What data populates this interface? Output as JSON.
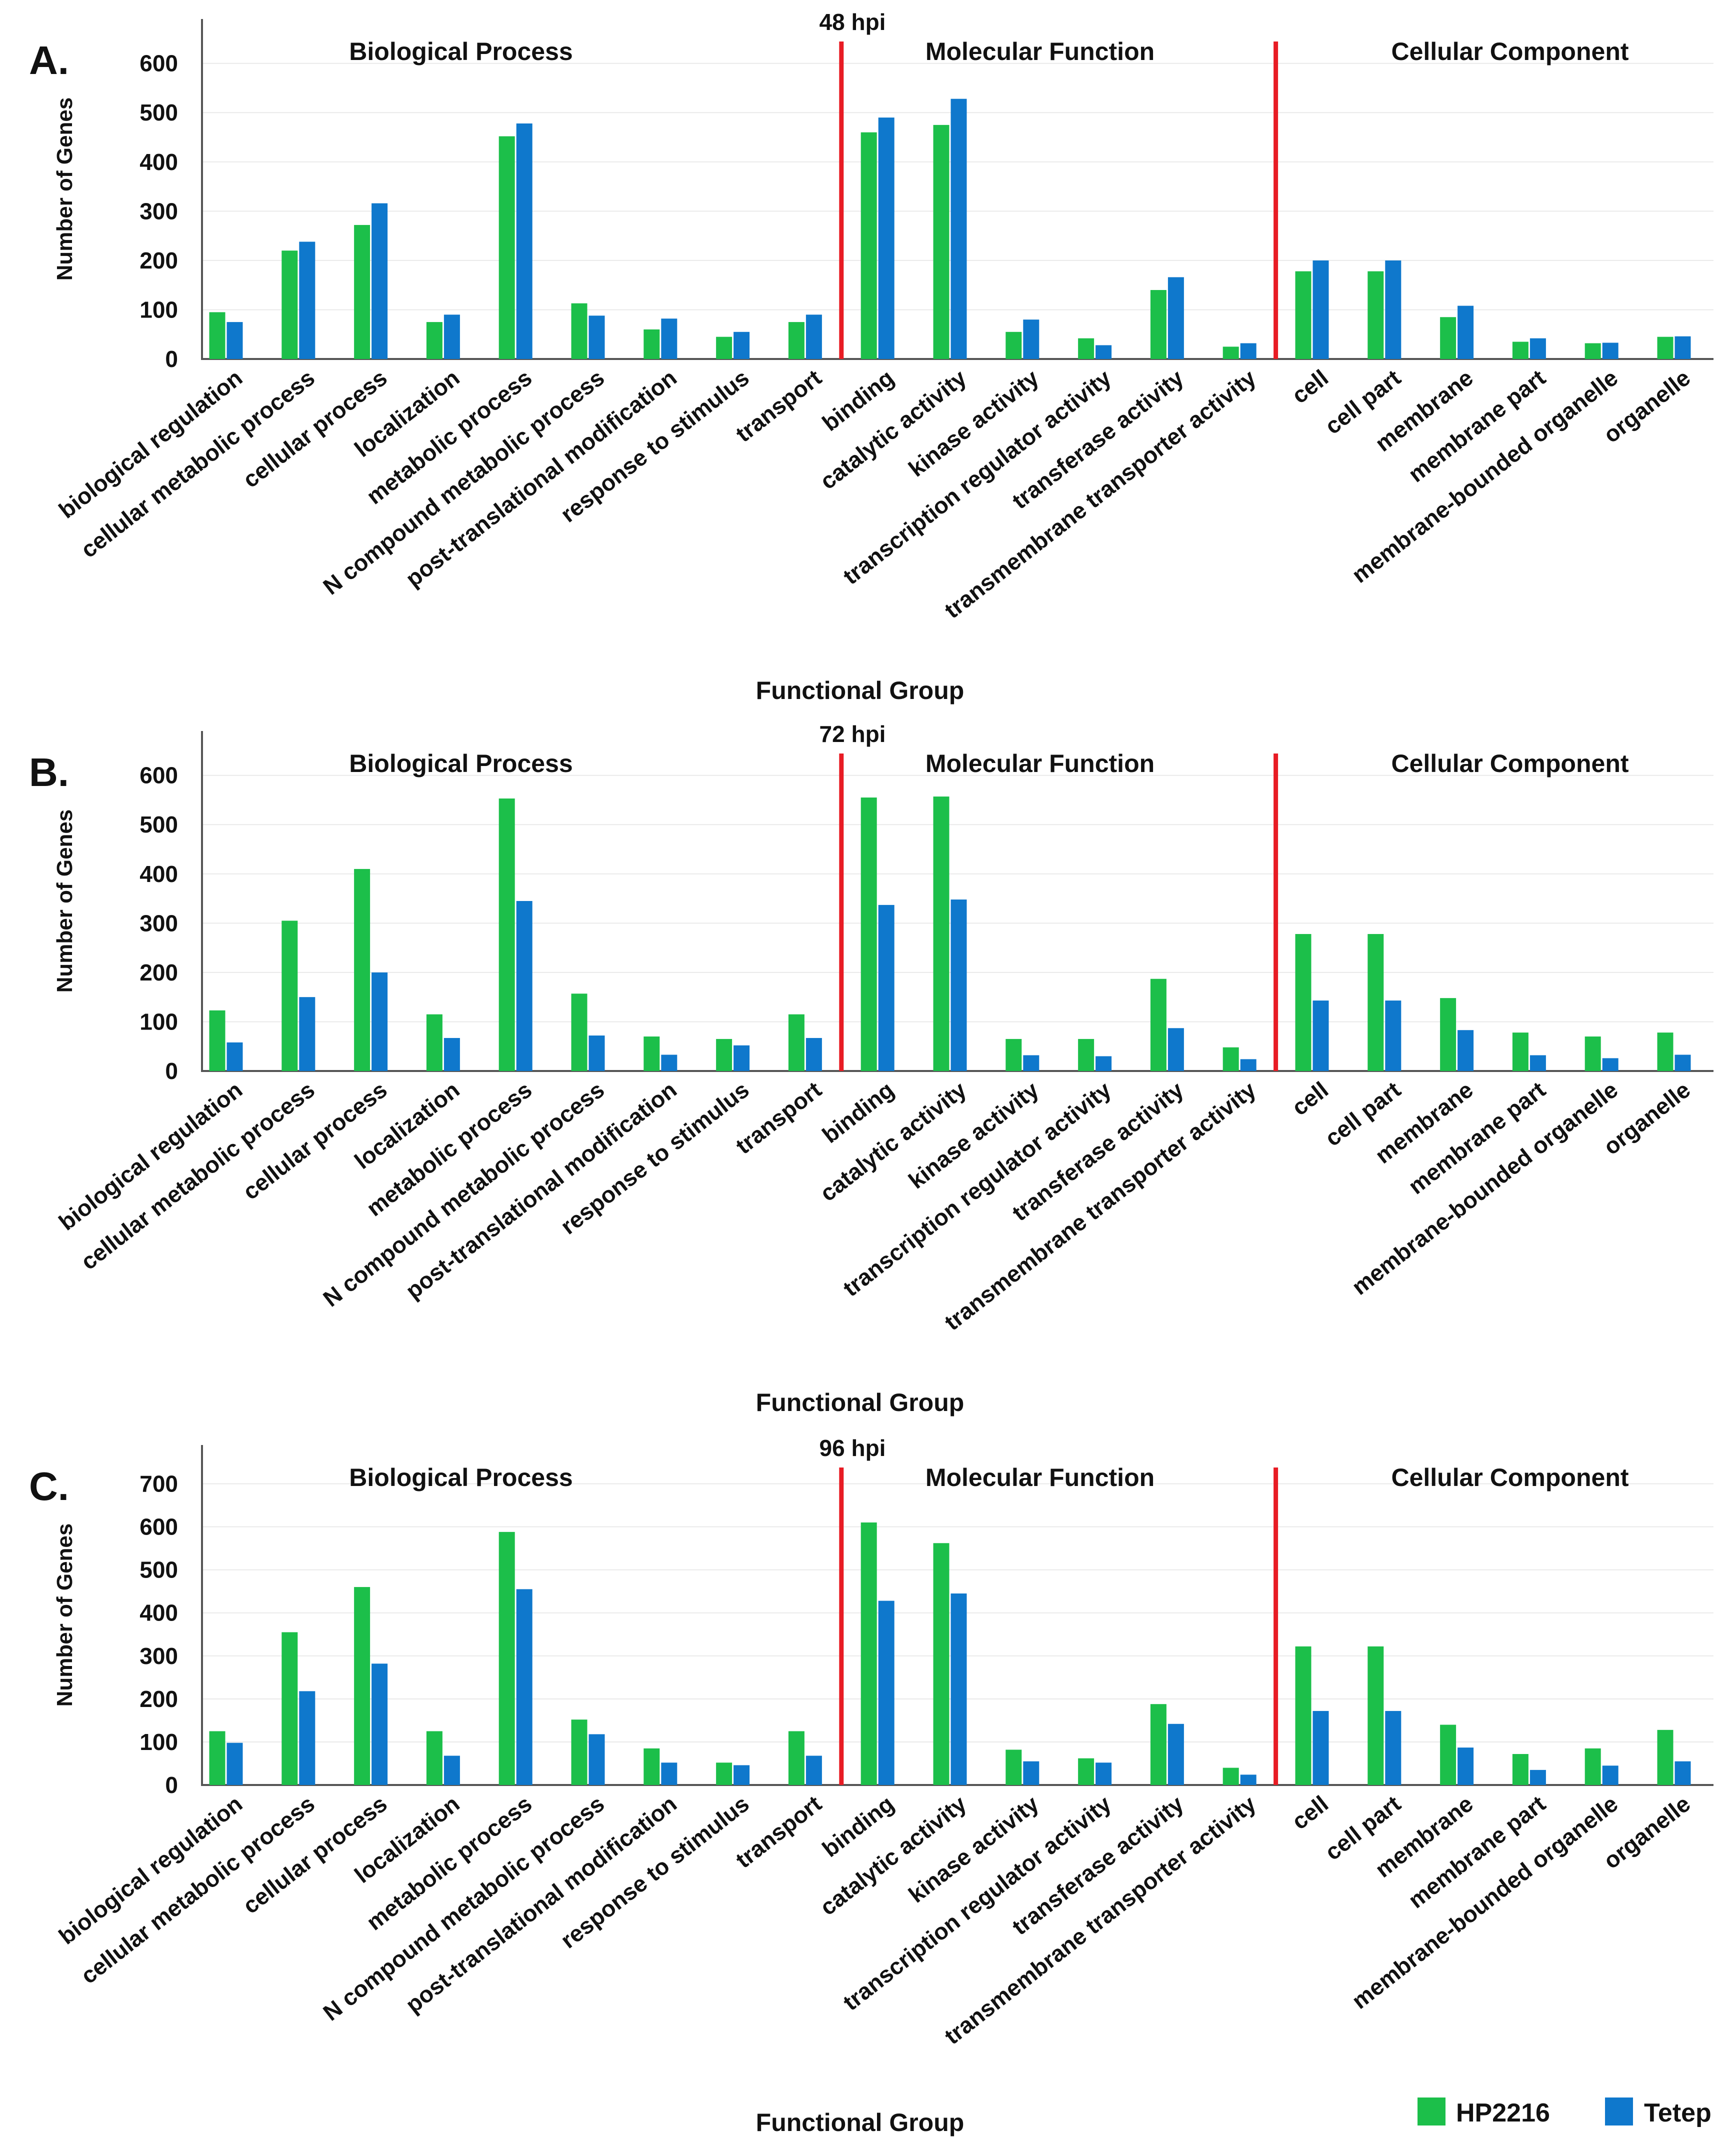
{
  "colors": {
    "series1": "#1cbf4a",
    "series2": "#0f78cc",
    "divider": "#e81c24"
  },
  "legend": {
    "series1_label": "HP2216",
    "series2_label": "Tetep"
  },
  "chart_data": [
    {
      "type": "bar",
      "panel_label": "A.",
      "title": "48 hpi",
      "ylabel": "Number of Genes",
      "xlabel": "Functional Group",
      "ylim": [
        0,
        690
      ],
      "yticks": [
        0,
        100,
        200,
        300,
        400,
        500,
        600
      ],
      "group_titles": [
        "Biological Process",
        "Molecular Function",
        "Cellular Component"
      ],
      "categories": [
        "biological regulation",
        "cellular metabolic process",
        "cellular process",
        "localization",
        "metabolic process",
        "N compound metabolic process",
        "post-translational modification",
        "response to stimulus",
        "transport",
        "binding",
        "catalytic activity",
        "kinase activity",
        "transcription regulator activity",
        "transferase activity",
        "transmembrane transporter activity",
        "cell",
        "cell part",
        "membrane",
        "membrane part",
        "membrane-bounded organelle",
        "organelle"
      ],
      "series": [
        {
          "name": "HP2216",
          "values": [
            95,
            220,
            272,
            75,
            452,
            113,
            60,
            45,
            75,
            460,
            475,
            55,
            42,
            140,
            25,
            178,
            178,
            85,
            35,
            32,
            45
          ]
        },
        {
          "name": "Tetep",
          "values": [
            75,
            238,
            316,
            90,
            478,
            88,
            82,
            55,
            90,
            490,
            528,
            80,
            28,
            166,
            32,
            200,
            200,
            108,
            42,
            33,
            46
          ]
        }
      ]
    },
    {
      "type": "bar",
      "panel_label": "B.",
      "title": "72 hpi",
      "ylabel": "Number of Genes",
      "xlabel": "Functional Group",
      "ylim": [
        0,
        690
      ],
      "yticks": [
        0,
        100,
        200,
        300,
        400,
        500,
        600
      ],
      "group_titles": [
        "Biological Process",
        "Molecular Function",
        "Cellular Component"
      ],
      "categories": [
        "biological regulation",
        "cellular metabolic process",
        "cellular process",
        "localization",
        "metabolic process",
        "N compound metabolic process",
        "post-translational modification",
        "response to stimulus",
        "transport",
        "binding",
        "catalytic activity",
        "kinase activity",
        "transcription regulator activity",
        "transferase activity",
        "transmembrane transporter activity",
        "cell",
        "cell part",
        "membrane",
        "membrane part",
        "membrane-bounded organelle",
        "organelle"
      ],
      "series": [
        {
          "name": "HP2216",
          "values": [
            123,
            305,
            410,
            115,
            553,
            157,
            70,
            65,
            115,
            555,
            557,
            65,
            65,
            187,
            48,
            278,
            278,
            148,
            78,
            70,
            78
          ]
        },
        {
          "name": "Tetep",
          "values": [
            58,
            150,
            200,
            67,
            345,
            72,
            33,
            52,
            67,
            337,
            348,
            32,
            30,
            87,
            24,
            143,
            143,
            83,
            32,
            26,
            33
          ]
        }
      ]
    },
    {
      "type": "bar",
      "panel_label": "C.",
      "title": "96 hpi",
      "ylabel": "Number of Genes",
      "xlabel": "Functional Group",
      "ylim": [
        0,
        790
      ],
      "yticks": [
        0,
        100,
        200,
        300,
        400,
        500,
        600,
        700
      ],
      "group_titles": [
        "Biological Process",
        "Molecular Function",
        "Cellular Component"
      ],
      "categories": [
        "biological regulation",
        "cellular metabolic process",
        "cellular process",
        "localization",
        "metabolic process",
        "N compound metabolic process",
        "post-translational modification",
        "response to stimulus",
        "transport",
        "binding",
        "catalytic activity",
        "kinase activity",
        "transcription regulator activity",
        "transferase activity",
        "transmembrane transporter activity",
        "cell",
        "cell part",
        "membrane",
        "membrane part",
        "membrane-bounded organelle",
        "organelle"
      ],
      "series": [
        {
          "name": "HP2216",
          "values": [
            125,
            355,
            460,
            125,
            588,
            152,
            85,
            52,
            125,
            610,
            562,
            82,
            62,
            188,
            40,
            322,
            322,
            140,
            72,
            85,
            128
          ]
        },
        {
          "name": "Tetep",
          "values": [
            98,
            218,
            282,
            68,
            455,
            118,
            52,
            46,
            68,
            428,
            445,
            55,
            52,
            142,
            24,
            172,
            172,
            87,
            35,
            45,
            55
          ]
        }
      ]
    }
  ]
}
